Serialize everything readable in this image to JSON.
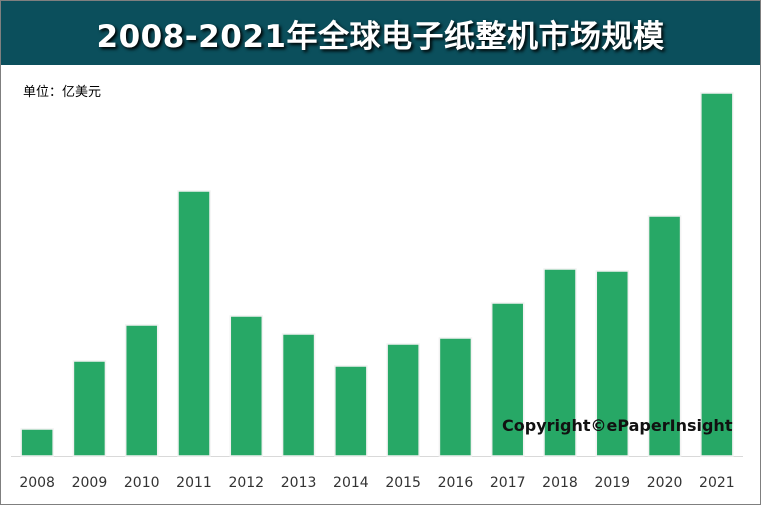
{
  "chart_data": {
    "type": "bar",
    "title": "2008-2021年全球电子纸整机市场规模",
    "unit_label": "单位：亿美元",
    "xlabel": "",
    "ylabel": "",
    "categories": [
      "2008",
      "2009",
      "2010",
      "2011",
      "2012",
      "2013",
      "2014",
      "2015",
      "2016",
      "2017",
      "2018",
      "2019",
      "2020",
      "2021"
    ],
    "values": [
      2.7,
      9.5,
      13.1,
      26.5,
      14.0,
      12.2,
      9.0,
      11.2,
      11.8,
      15.3,
      18.7,
      18.5,
      24.0,
      36.3
    ],
    "ylim": [
      0,
      36.3
    ],
    "grid": false,
    "annotation": "Copyright©ePaperInsight",
    "colors": {
      "bar": "#27a866",
      "header": "#0b4f5c"
    }
  }
}
